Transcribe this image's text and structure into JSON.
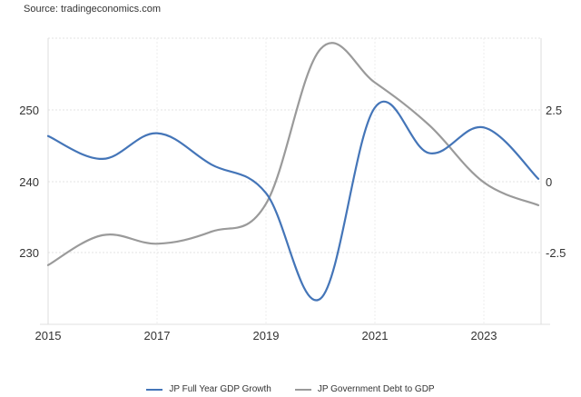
{
  "source_text": "Source: tradingeconomics.com",
  "chart_data": {
    "type": "line",
    "title": "",
    "x": [
      "2015",
      "2016",
      "2017",
      "2018",
      "2019",
      "2020",
      "2021",
      "2022",
      "2023",
      "2024"
    ],
    "x_tick_labels": [
      "2015",
      "2017",
      "2019",
      "2021",
      "2023"
    ],
    "left_axis": {
      "ticks": [
        "250",
        "240",
        "230"
      ],
      "range": [
        220,
        260
      ]
    },
    "right_axis": {
      "ticks": [
        "2.5",
        "0",
        "-2.5"
      ],
      "range": [
        -5,
        5
      ]
    },
    "series": [
      {
        "name": "JP Full Year GDP Growth",
        "axis": "right",
        "color": "#4475b8",
        "values": [
          1.6,
          0.8,
          1.7,
          0.6,
          -0.4,
          -4.1,
          2.6,
          1.0,
          1.9,
          0.1
        ]
      },
      {
        "name": "JP Government Debt to GDP",
        "axis": "left",
        "color": "#9a9a9a",
        "values": [
          228.3,
          232.5,
          231.3,
          233.0,
          236.9,
          258.6,
          253.9,
          247.9,
          239.9,
          236.7
        ]
      }
    ],
    "grid": true,
    "legend_position": "bottom"
  },
  "legend": {
    "items": [
      {
        "label": "JP Full Year GDP Growth",
        "color": "#4475b8"
      },
      {
        "label": "JP Government Debt to GDP",
        "color": "#9a9a9a"
      }
    ]
  }
}
